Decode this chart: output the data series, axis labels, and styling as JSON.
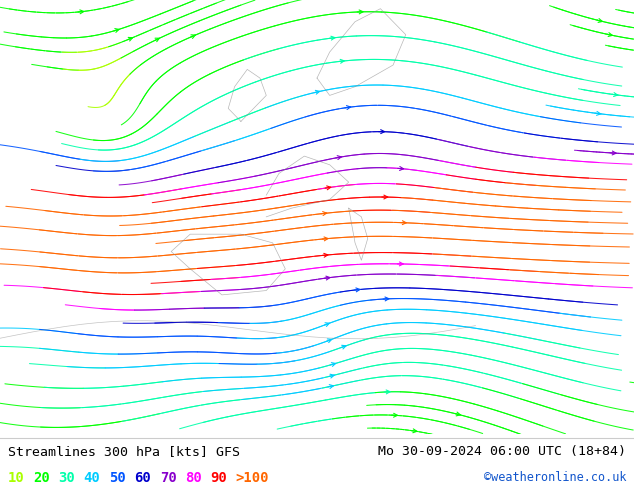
{
  "title_left": "Streamlines 300 hPa [kts] GFS",
  "title_right": "Mo 30-09-2024 06:00 UTC (18+84)",
  "credit": "©weatheronline.co.uk",
  "legend_values": [
    "10",
    "20",
    "30",
    "40",
    "50",
    "60",
    "70",
    "80",
    "90",
    ">100"
  ],
  "legend_colors": [
    "#aaff00",
    "#00ff00",
    "#00ffaa",
    "#00ccff",
    "#0055ff",
    "#0000cc",
    "#8800cc",
    "#ff00ff",
    "#ff0000",
    "#ff6600"
  ],
  "bg_color": "#ffffff",
  "land_color": "#aad466",
  "sea_color": "#ffffff",
  "coast_color": "#888888",
  "title_fontsize": 9.5,
  "credit_fontsize": 8.5,
  "legend_fontsize": 10,
  "figsize": [
    6.34,
    4.9
  ],
  "dpi": 100,
  "info_bar_height": 0.115
}
